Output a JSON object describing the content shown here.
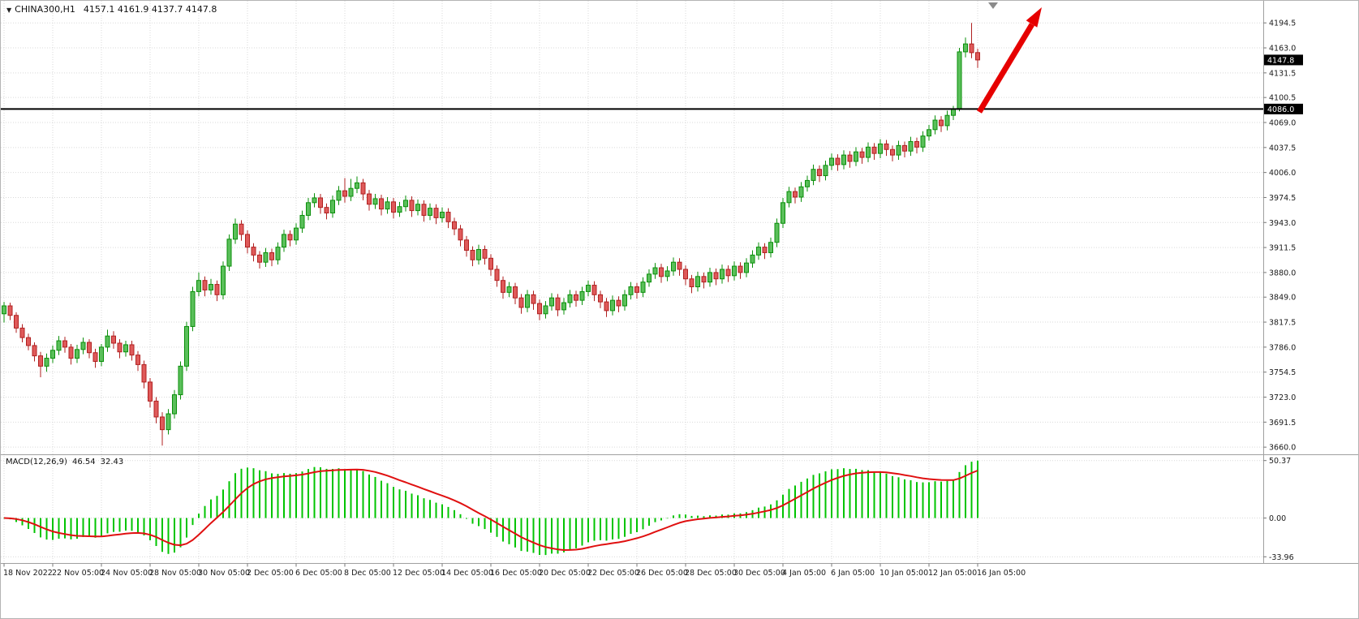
{
  "header": {
    "dropdown_icon": "▼",
    "symbol": "CHINA300,H1",
    "ohlc": "4157.1 4161.9 4137.7 4147.8"
  },
  "colors": {
    "bull_fill": "#5abf5a",
    "bull_border": "#0a8f0a",
    "bear_fill": "#df5a5a",
    "bear_border": "#b02020",
    "macd_bar": "#00c400",
    "signal_line": "#e01010",
    "trend_arrow": "#e60000",
    "grid": "#d9d9d9",
    "badge_bg": "#000000",
    "badge_text": "#ffffff",
    "hline": "#000000",
    "axis_text": "#1a1a1a",
    "marker": "#8a8a8a",
    "panel_border": "#a0a0a0"
  },
  "chart_data": {
    "type": "candlestick",
    "symbol": "CHINA300",
    "timeframe": "H1",
    "last_bar": {
      "open": 4157.1,
      "high": 4161.9,
      "low": 4137.7,
      "close": 4147.8
    },
    "price_axis": {
      "ticks": [
        4194.5,
        4163.0,
        4131.5,
        4100.5,
        4069.0,
        4037.5,
        4006.0,
        3974.5,
        3943.0,
        3911.5,
        3880.0,
        3849.0,
        3817.5,
        3786.0,
        3754.5,
        3723.0,
        3691.5,
        3660.0
      ],
      "current_price": 4147.8,
      "range_min": 3653,
      "range_max": 4208
    },
    "time_axis": {
      "bars_per_label": 8,
      "labels": [
        "18 Nov 2022",
        "22 Nov 05:00",
        "24 Nov 05:00",
        "28 Nov 05:00",
        "30 Nov 05:00",
        "2 Dec 05:00",
        "6 Dec 05:00",
        "8 Dec 05:00",
        "12 Dec 05:00",
        "14 Dec 05:00",
        "16 Dec 05:00",
        "20 Dec 05:00",
        "22 Dec 05:00",
        "26 Dec 05:00",
        "28 Dec 05:00",
        "30 Dec 05:00",
        "4 Jan 05:00",
        "6 Jan 05:00",
        "10 Jan 05:00",
        "12 Jan 05:00",
        "16 Jan 05:00"
      ]
    },
    "horizontal_line": {
      "price": 4086.0
    },
    "trend_arrow": {
      "description": "thick red arrow pointing up-right above the breakout candles"
    },
    "candles": [
      [
        3828,
        3843,
        3817,
        3838
      ],
      [
        3838,
        3842,
        3820,
        3826
      ],
      [
        3826,
        3830,
        3804,
        3810
      ],
      [
        3810,
        3815,
        3792,
        3798
      ],
      [
        3798,
        3803,
        3782,
        3788
      ],
      [
        3788,
        3792,
        3768,
        3775
      ],
      [
        3775,
        3780,
        3748,
        3762
      ],
      [
        3762,
        3778,
        3755,
        3772
      ],
      [
        3772,
        3788,
        3766,
        3782
      ],
      [
        3782,
        3800,
        3776,
        3794
      ],
      [
        3794,
        3799,
        3779,
        3786
      ],
      [
        3786,
        3790,
        3764,
        3772
      ],
      [
        3772,
        3789,
        3766,
        3783
      ],
      [
        3783,
        3798,
        3777,
        3792
      ],
      [
        3792,
        3796,
        3772,
        3779
      ],
      [
        3779,
        3784,
        3760,
        3768
      ],
      [
        3768,
        3790,
        3762,
        3786
      ],
      [
        3786,
        3808,
        3780,
        3800
      ],
      [
        3800,
        3806,
        3784,
        3791
      ],
      [
        3791,
        3796,
        3772,
        3780
      ],
      [
        3780,
        3794,
        3774,
        3789
      ],
      [
        3789,
        3794,
        3769,
        3776
      ],
      [
        3776,
        3781,
        3756,
        3764
      ],
      [
        3764,
        3769,
        3734,
        3742
      ],
      [
        3742,
        3747,
        3710,
        3718
      ],
      [
        3718,
        3723,
        3690,
        3698
      ],
      [
        3698,
        3704,
        3662,
        3682
      ],
      [
        3682,
        3708,
        3676,
        3702
      ],
      [
        3702,
        3732,
        3696,
        3726
      ],
      [
        3726,
        3768,
        3720,
        3762
      ],
      [
        3762,
        3818,
        3756,
        3812
      ],
      [
        3812,
        3862,
        3806,
        3856
      ],
      [
        3856,
        3880,
        3850,
        3870
      ],
      [
        3870,
        3875,
        3850,
        3858
      ],
      [
        3858,
        3872,
        3852,
        3865
      ],
      [
        3865,
        3870,
        3844,
        3852
      ],
      [
        3852,
        3894,
        3846,
        3888
      ],
      [
        3888,
        3928,
        3882,
        3922
      ],
      [
        3922,
        3948,
        3916,
        3941
      ],
      [
        3941,
        3946,
        3920,
        3928
      ],
      [
        3928,
        3933,
        3904,
        3912
      ],
      [
        3912,
        3917,
        3894,
        3902
      ],
      [
        3902,
        3907,
        3885,
        3893
      ],
      [
        3893,
        3911,
        3887,
        3905
      ],
      [
        3905,
        3910,
        3888,
        3896
      ],
      [
        3896,
        3918,
        3890,
        3912
      ],
      [
        3912,
        3934,
        3906,
        3928
      ],
      [
        3928,
        3933,
        3913,
        3921
      ],
      [
        3921,
        3942,
        3915,
        3936
      ],
      [
        3936,
        3958,
        3930,
        3952
      ],
      [
        3952,
        3974,
        3946,
        3968
      ],
      [
        3968,
        3980,
        3962,
        3974
      ],
      [
        3974,
        3979,
        3954,
        3962
      ],
      [
        3962,
        3967,
        3947,
        3955
      ],
      [
        3955,
        3977,
        3949,
        3971
      ],
      [
        3971,
        3989,
        3965,
        3983
      ],
      [
        3983,
        3999,
        3968,
        3976
      ],
      [
        3976,
        3998,
        3970,
        3986
      ],
      [
        3986,
        4001,
        3980,
        3993
      ],
      [
        3993,
        3998,
        3971,
        3979
      ],
      [
        3979,
        3984,
        3958,
        3966
      ],
      [
        3966,
        3979,
        3960,
        3973
      ],
      [
        3973,
        3978,
        3952,
        3960
      ],
      [
        3960,
        3975,
        3954,
        3969
      ],
      [
        3969,
        3974,
        3948,
        3956
      ],
      [
        3956,
        3969,
        3950,
        3963
      ],
      [
        3963,
        3977,
        3957,
        3971
      ],
      [
        3971,
        3976,
        3950,
        3958
      ],
      [
        3958,
        3972,
        3952,
        3966
      ],
      [
        3966,
        3971,
        3944,
        3952
      ],
      [
        3952,
        3967,
        3946,
        3961
      ],
      [
        3961,
        3966,
        3941,
        3949
      ],
      [
        3949,
        3962,
        3943,
        3956
      ],
      [
        3956,
        3961,
        3936,
        3944
      ],
      [
        3944,
        3949,
        3927,
        3935
      ],
      [
        3935,
        3940,
        3913,
        3921
      ],
      [
        3921,
        3926,
        3900,
        3908
      ],
      [
        3908,
        3913,
        3888,
        3896
      ],
      [
        3896,
        3915,
        3890,
        3909
      ],
      [
        3909,
        3914,
        3890,
        3898
      ],
      [
        3898,
        3903,
        3876,
        3884
      ],
      [
        3884,
        3889,
        3862,
        3870
      ],
      [
        3870,
        3875,
        3847,
        3855
      ],
      [
        3855,
        3868,
        3849,
        3862
      ],
      [
        3862,
        3867,
        3840,
        3848
      ],
      [
        3848,
        3853,
        3828,
        3836
      ],
      [
        3836,
        3858,
        3830,
        3852
      ],
      [
        3852,
        3857,
        3833,
        3841
      ],
      [
        3841,
        3846,
        3820,
        3828
      ],
      [
        3828,
        3844,
        3822,
        3838
      ],
      [
        3838,
        3854,
        3832,
        3848
      ],
      [
        3848,
        3853,
        3825,
        3833
      ],
      [
        3833,
        3848,
        3827,
        3842
      ],
      [
        3842,
        3858,
        3836,
        3852
      ],
      [
        3852,
        3857,
        3837,
        3845
      ],
      [
        3845,
        3862,
        3839,
        3856
      ],
      [
        3856,
        3870,
        3850,
        3864
      ],
      [
        3864,
        3869,
        3844,
        3852
      ],
      [
        3852,
        3857,
        3835,
        3843
      ],
      [
        3843,
        3848,
        3824,
        3832
      ],
      [
        3832,
        3851,
        3826,
        3845
      ],
      [
        3845,
        3850,
        3830,
        3838
      ],
      [
        3838,
        3858,
        3832,
        3852
      ],
      [
        3852,
        3868,
        3846,
        3862
      ],
      [
        3862,
        3867,
        3847,
        3855
      ],
      [
        3855,
        3874,
        3849,
        3868
      ],
      [
        3868,
        3884,
        3862,
        3878
      ],
      [
        3878,
        3892,
        3872,
        3886
      ],
      [
        3886,
        3891,
        3867,
        3875
      ],
      [
        3875,
        3888,
        3869,
        3882
      ],
      [
        3882,
        3899,
        3876,
        3893
      ],
      [
        3893,
        3898,
        3876,
        3884
      ],
      [
        3884,
        3889,
        3864,
        3872
      ],
      [
        3872,
        3877,
        3854,
        3862
      ],
      [
        3862,
        3881,
        3856,
        3875
      ],
      [
        3875,
        3880,
        3860,
        3868
      ],
      [
        3868,
        3886,
        3862,
        3880
      ],
      [
        3880,
        3885,
        3864,
        3872
      ],
      [
        3872,
        3890,
        3866,
        3884
      ],
      [
        3884,
        3889,
        3868,
        3876
      ],
      [
        3876,
        3894,
        3870,
        3888
      ],
      [
        3888,
        3893,
        3872,
        3880
      ],
      [
        3880,
        3898,
        3874,
        3892
      ],
      [
        3892,
        3908,
        3886,
        3902
      ],
      [
        3902,
        3918,
        3896,
        3912
      ],
      [
        3912,
        3917,
        3897,
        3905
      ],
      [
        3905,
        3924,
        3899,
        3918
      ],
      [
        3918,
        3948,
        3912,
        3942
      ],
      [
        3942,
        3974,
        3936,
        3968
      ],
      [
        3968,
        3988,
        3962,
        3982
      ],
      [
        3982,
        3987,
        3967,
        3975
      ],
      [
        3975,
        3994,
        3969,
        3988
      ],
      [
        3988,
        4002,
        3982,
        3996
      ],
      [
        3996,
        4016,
        3990,
        4010
      ],
      [
        4010,
        4015,
        3994,
        4002
      ],
      [
        4002,
        4021,
        3996,
        4015
      ],
      [
        4015,
        4030,
        4009,
        4024
      ],
      [
        4024,
        4029,
        4008,
        4016
      ],
      [
        4016,
        4034,
        4010,
        4028
      ],
      [
        4028,
        4033,
        4012,
        4020
      ],
      [
        4020,
        4038,
        4014,
        4032
      ],
      [
        4032,
        4037,
        4017,
        4025
      ],
      [
        4025,
        4044,
        4019,
        4038
      ],
      [
        4038,
        4043,
        4022,
        4030
      ],
      [
        4030,
        4048,
        4024,
        4042
      ],
      [
        4042,
        4047,
        4027,
        4035
      ],
      [
        4035,
        4040,
        4020,
        4028
      ],
      [
        4028,
        4046,
        4022,
        4040
      ],
      [
        4040,
        4045,
        4025,
        4033
      ],
      [
        4033,
        4051,
        4027,
        4045
      ],
      [
        4045,
        4050,
        4030,
        4038
      ],
      [
        4038,
        4058,
        4032,
        4052
      ],
      [
        4052,
        4066,
        4046,
        4060
      ],
      [
        4060,
        4078,
        4054,
        4072
      ],
      [
        4072,
        4077,
        4057,
        4065
      ],
      [
        4065,
        4084,
        4059,
        4078
      ],
      [
        4078,
        4090,
        4072,
        4086
      ],
      [
        4086,
        4163,
        4083,
        4158
      ],
      [
        4158,
        4176,
        4151,
        4168
      ],
      [
        4168,
        4194.5,
        4150,
        4157
      ],
      [
        4157.1,
        4161.9,
        4137.7,
        4147.8
      ]
    ],
    "macd": {
      "label": "MACD(12,26,9)",
      "fast": 12,
      "slow": 26,
      "signal": 9,
      "macd_value": 46.54,
      "signal_value": 32.43,
      "ticks": [
        50.37,
        0.0,
        -33.96
      ]
    }
  }
}
